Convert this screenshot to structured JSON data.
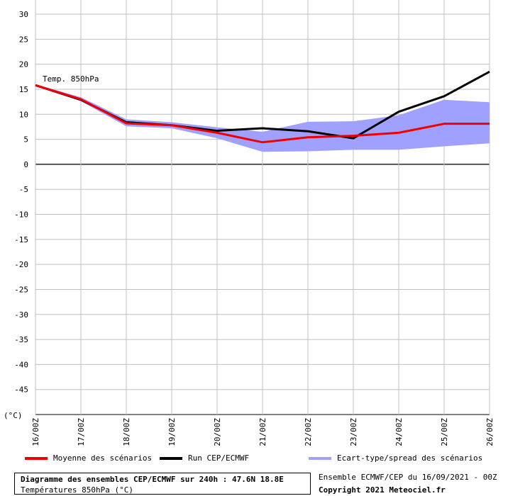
{
  "chart_data": {
    "type": "line",
    "annotation": "Temp. 850hPa",
    "y_unit_label": "(°C)",
    "ylim": [
      -50,
      30
    ],
    "y_ticks": [
      30,
      25,
      20,
      15,
      10,
      5,
      0,
      -5,
      -10,
      -15,
      -20,
      -25,
      -30,
      -35,
      -40,
      -45
    ],
    "categories": [
      "16/00Z",
      "17/00Z",
      "18/00Z",
      "19/00Z",
      "20/00Z",
      "21/00Z",
      "22/00Z",
      "23/00Z",
      "24/00Z",
      "25/00Z",
      "26/00Z"
    ],
    "grid": true,
    "series": [
      {
        "name": "Moyenne des scénarios",
        "type": "line",
        "color": "#ee0000",
        "values": [
          15.8,
          13.0,
          8.2,
          7.8,
          6.3,
          4.4,
          5.4,
          5.7,
          6.3,
          8.1,
          8.1
        ]
      },
      {
        "name": "Run CEP/ECMWF",
        "type": "line",
        "color": "#000000",
        "values": [
          15.8,
          12.9,
          8.4,
          7.8,
          6.7,
          7.2,
          6.6,
          5.2,
          10.5,
          13.6,
          18.5
        ]
      },
      {
        "name": "Ecart-type/spread des scénarios",
        "type": "band",
        "color": "#a0a0ff",
        "upper": [
          16.0,
          13.4,
          9.0,
          8.4,
          7.4,
          6.5,
          8.5,
          8.6,
          9.8,
          12.9,
          12.4
        ],
        "lower": [
          15.6,
          12.6,
          7.6,
          7.2,
          5.2,
          2.5,
          2.6,
          2.9,
          2.9,
          3.6,
          4.2
        ]
      }
    ]
  },
  "info": {
    "title": "Diagramme des ensembles CEP/ECMWF sur 240h : 47.6N 18.8E",
    "subtitle": "Températures 850hPa (°C)",
    "ensemble_date": "Ensemble ECMWF/CEP du 16/09/2021 - 00Z",
    "copyright": "Copyright 2021 Meteociel.fr"
  }
}
